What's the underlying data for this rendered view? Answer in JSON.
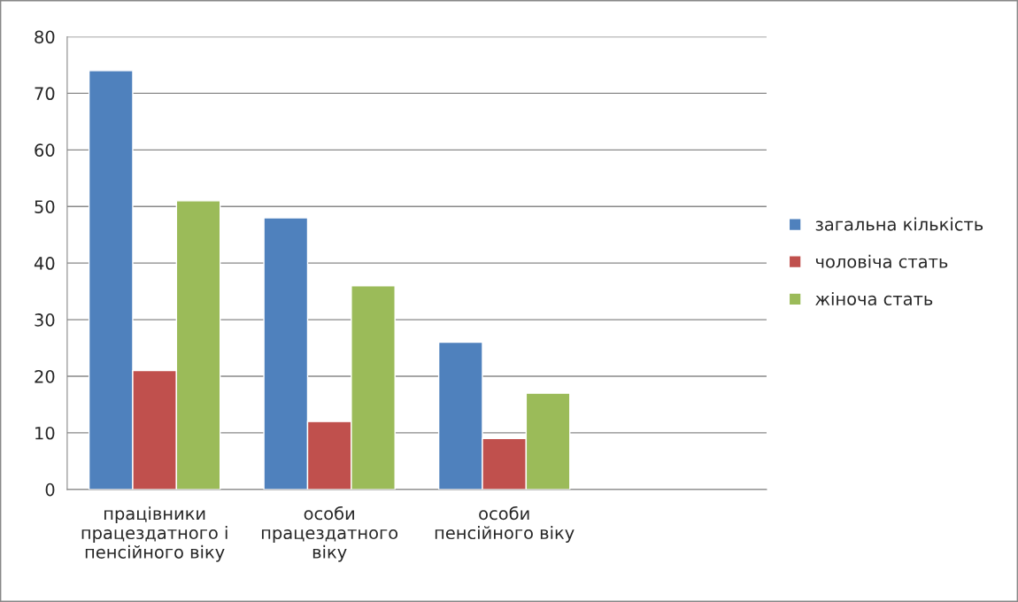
{
  "chart_data": {
    "type": "bar",
    "categories": [
      "працівники\nпрацездатного і\nпенсійного віку",
      "особи\nпрацездатного\nвіку",
      "особи\nпенсійного віку",
      null
    ],
    "series": [
      {
        "name": "загальна кількість",
        "color": "#4f81bd",
        "values": [
          74,
          48,
          26,
          null
        ]
      },
      {
        "name": "чоловіча стать",
        "color": "#c0504d",
        "values": [
          21,
          12,
          9,
          null
        ]
      },
      {
        "name": "жіноча стать",
        "color": "#9bbb59",
        "values": [
          51,
          36,
          17,
          null
        ]
      }
    ],
    "ylim": [
      0,
      80
    ],
    "yticks": [
      0,
      10,
      20,
      30,
      40,
      50,
      60,
      70,
      80
    ],
    "grid": "y",
    "legend": "right"
  }
}
